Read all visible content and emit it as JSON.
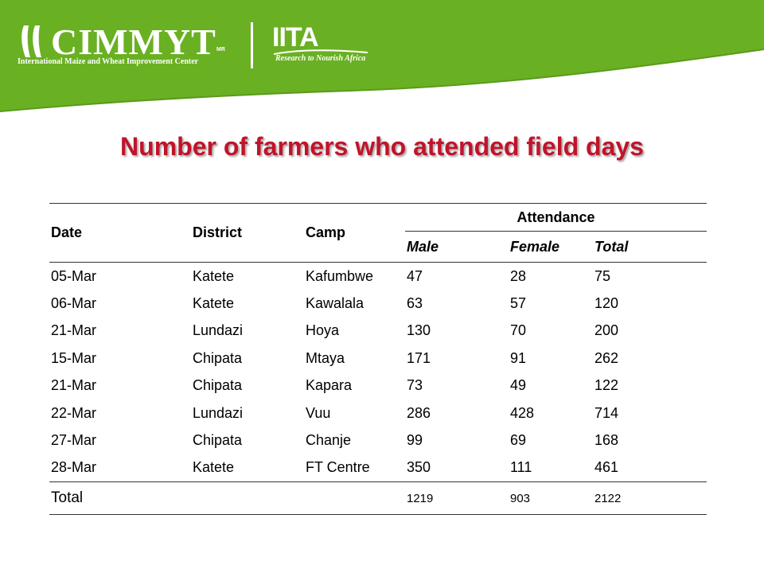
{
  "brand": {
    "cimmyt_name": "CIMMYT",
    "cimmyt_mark": "MR",
    "cimmyt_tagline": "International Maize and Wheat Improvement Center",
    "iita_name": "IITA",
    "iita_tagline": "Research to Nourish Africa",
    "banner_color": "#6ab023"
  },
  "title": "Number of farmers who attended field days",
  "title_color": "#c0142a",
  "table": {
    "headers": {
      "date": "Date",
      "district": "District",
      "camp": "Camp",
      "attendance": "Attendance",
      "male": "Male",
      "female": "Female",
      "total": "Total"
    },
    "rows": [
      {
        "date": "05-Mar",
        "district": "Katete",
        "camp": "Kafumbwe",
        "male": "47",
        "female": "28",
        "total": "75"
      },
      {
        "date": "06-Mar",
        "district": "Katete",
        "camp": "Kawalala",
        "male": "63",
        "female": "57",
        "total": "120"
      },
      {
        "date": "21-Mar",
        "district": "Lundazi",
        "camp": "Hoya",
        "male": "130",
        "female": "70",
        "total": "200"
      },
      {
        "date": "15-Mar",
        "district": "Chipata",
        "camp": "Mtaya",
        "male": "171",
        "female": "91",
        "total": "262"
      },
      {
        "date": "21-Mar",
        "district": "Chipata",
        "camp": "Kapara",
        "male": "73",
        "female": "49",
        "total": "122"
      },
      {
        "date": "22-Mar",
        "district": "Lundazi",
        "camp": "Vuu",
        "male": "286",
        "female": "428",
        "total": "714"
      },
      {
        "date": "27-Mar",
        "district": "Chipata",
        "camp": "Chanje",
        "male": "99",
        "female": "69",
        "total": "168"
      },
      {
        "date": "28-Mar",
        "district": "Katete",
        "camp": "FT Centre",
        "male": "350",
        "female": "111",
        "total": "461"
      }
    ],
    "footer": {
      "label": "Total",
      "male": "1219",
      "female": "903",
      "total": "2122"
    }
  }
}
